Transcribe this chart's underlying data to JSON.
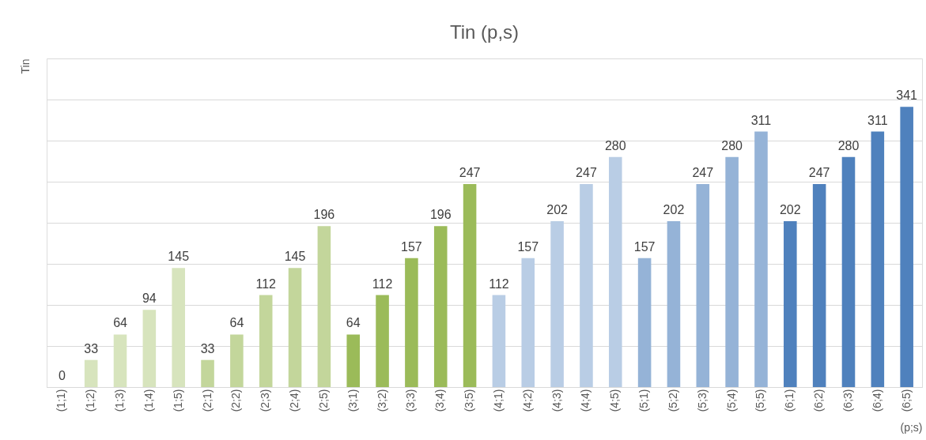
{
  "chart_data": {
    "type": "bar",
    "title": "Tin (p,s)",
    "xlabel": "(p;s)",
    "ylabel": "Tin",
    "categories": [
      "(1;1)",
      "(1;2)",
      "(1;3)",
      "(1;4)",
      "(1;5)",
      "(2;1)",
      "(2;2)",
      "(2;3)",
      "(2;4)",
      "(2;5)",
      "(3;1)",
      "(3;2)",
      "(3;3)",
      "(3;4)",
      "(3;5)",
      "(4;1)",
      "(4;2)",
      "(4;3)",
      "(4;4)",
      "(4;5)",
      "(5;1)",
      "(5;2)",
      "(5;3)",
      "(5;4)",
      "(5;5)",
      "(6;1)",
      "(6;2)",
      "(6;3)",
      "(6;4)",
      "(6;5)"
    ],
    "values": [
      0,
      33,
      64,
      94,
      145,
      33,
      64,
      112,
      145,
      196,
      64,
      112,
      157,
      196,
      247,
      112,
      157,
      202,
      247,
      280,
      157,
      202,
      247,
      280,
      311,
      202,
      247,
      280,
      311,
      341
    ],
    "colors": [
      "#d7e4bd",
      "#d7e4bd",
      "#d7e4bd",
      "#d7e4bd",
      "#d7e4bd",
      "#c3d69b",
      "#c3d69b",
      "#c3d69b",
      "#c3d69b",
      "#c3d69b",
      "#9bbb59",
      "#9bbb59",
      "#9bbb59",
      "#9bbb59",
      "#9bbb59",
      "#b9cde5",
      "#b9cde5",
      "#b9cde5",
      "#b9cde5",
      "#b9cde5",
      "#95b3d7",
      "#95b3d7",
      "#95b3d7",
      "#95b3d7",
      "#95b3d7",
      "#4f81bd",
      "#4f81bd",
      "#4f81bd",
      "#4f81bd",
      "#4f81bd"
    ],
    "ylim": [
      0,
      400
    ],
    "yticks": [
      {
        "value": 0,
        "label": null
      },
      {
        "value": 50,
        "label": null
      },
      {
        "value": 100,
        "label": null
      },
      {
        "value": 150,
        "label": null
      },
      {
        "value": 200,
        "label": null
      },
      {
        "value": 250,
        "label": null
      },
      {
        "value": 300,
        "label": null
      },
      {
        "value": 350,
        "label": null
      },
      {
        "value": 400,
        "label": null
      }
    ],
    "grid": "y",
    "tick_labels": "x",
    "data_labels": true,
    "legend": false
  }
}
